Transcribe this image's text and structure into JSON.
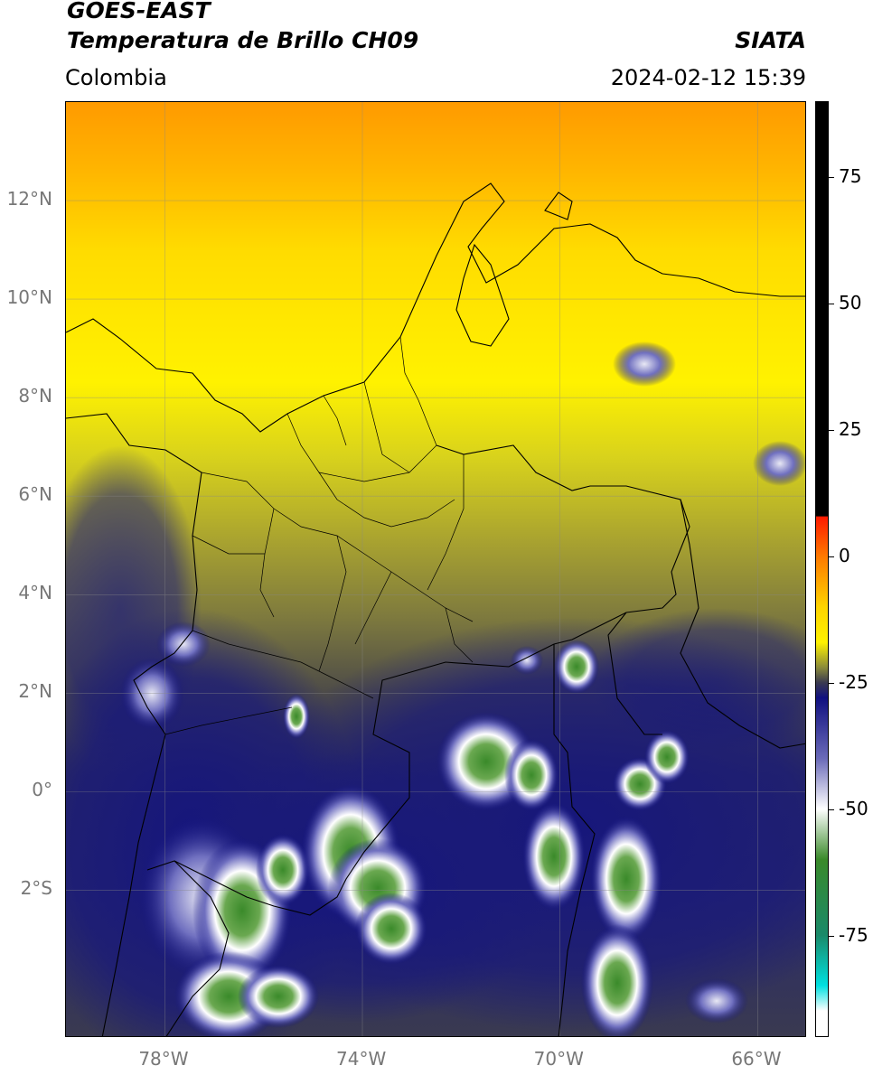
{
  "header": {
    "satellite": "GOES-EAST",
    "product": "Temperatura de Brillo CH09",
    "region": "Colombia",
    "agency": "SIATA",
    "datetime": "2024-02-12 15:39"
  },
  "map": {
    "lat_range": [
      -5,
      14
    ],
    "lon_range": [
      -80,
      -65
    ],
    "lat_ticks": [
      {
        "value": 12,
        "label": "12°N"
      },
      {
        "value": 10,
        "label": "10°N"
      },
      {
        "value": 8,
        "label": "8°N"
      },
      {
        "value": 6,
        "label": "6°N"
      },
      {
        "value": 4,
        "label": "4°N"
      },
      {
        "value": 2,
        "label": "2°N"
      },
      {
        "value": 0,
        "label": "0°"
      },
      {
        "value": -2,
        "label": "2°S"
      }
    ],
    "lon_ticks": [
      {
        "value": -78,
        "label": "78°W"
      },
      {
        "value": -74,
        "label": "74°W"
      },
      {
        "value": -70,
        "label": "70°W"
      },
      {
        "value": -66,
        "label": "66°W"
      }
    ]
  },
  "colorbar": {
    "range": [
      -95,
      90
    ],
    "ticks": [
      {
        "value": 75,
        "label": "75"
      },
      {
        "value": 50,
        "label": "50"
      },
      {
        "value": 25,
        "label": "25"
      },
      {
        "value": 0,
        "label": "0"
      },
      {
        "value": -25,
        "label": "-25"
      },
      {
        "value": -50,
        "label": "-50"
      },
      {
        "value": -75,
        "label": "-75"
      }
    ],
    "stops": [
      {
        "value": 90,
        "color": "#000000"
      },
      {
        "value": 8,
        "color": "#000000"
      },
      {
        "value": 7.9,
        "color": "#ff1a00"
      },
      {
        "value": 0,
        "color": "#ff7a00"
      },
      {
        "value": -10,
        "color": "#ffd400"
      },
      {
        "value": -17,
        "color": "#fff200"
      },
      {
        "value": -22,
        "color": "#8a8a3a"
      },
      {
        "value": -25,
        "color": "#3a3a50"
      },
      {
        "value": -28,
        "color": "#101080"
      },
      {
        "value": -40,
        "color": "#6a6ab8"
      },
      {
        "value": -50,
        "color": "#ffffff"
      },
      {
        "value": -60,
        "color": "#3a8a2a"
      },
      {
        "value": -75,
        "color": "#1a8a6a"
      },
      {
        "value": -85,
        "color": "#00e0e0"
      },
      {
        "value": -90,
        "color": "#ffffff"
      },
      {
        "value": -95,
        "color": "#ffffff"
      }
    ]
  }
}
